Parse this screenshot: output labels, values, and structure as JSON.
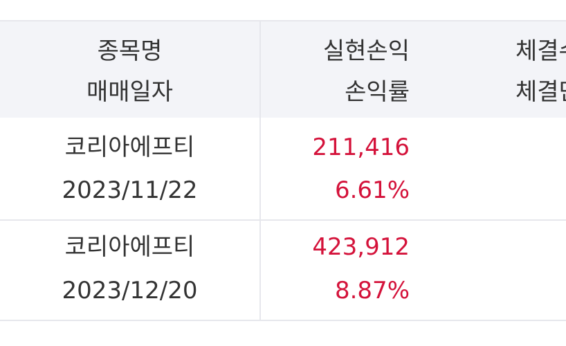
{
  "table": {
    "header": [
      [
        "종목명",
        "매매일자"
      ],
      [
        "실현손익",
        "손익률"
      ],
      [
        "체결수량",
        "체결단가"
      ]
    ],
    "rows": [
      {
        "name": "코리아에프티",
        "date": "2023/11/22",
        "pnl": "211,416",
        "rate": "6.61%"
      },
      {
        "name": "코리아에프티",
        "date": "2023/12/20",
        "pnl": "423,912",
        "rate": "8.87%"
      }
    ]
  }
}
